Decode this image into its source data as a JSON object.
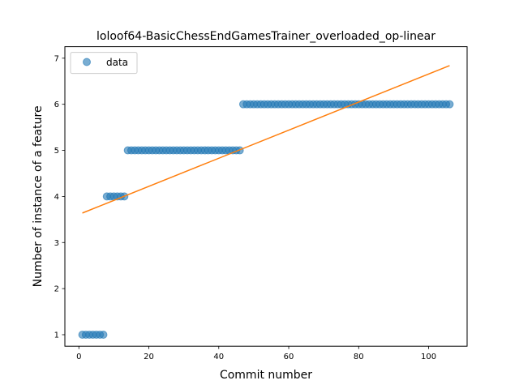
{
  "chart_data": {
    "type": "scatter",
    "title": "loloof64-BasicChessEndGamesTrainer_overloaded_op-linear",
    "xlabel": "Commit number",
    "ylabel": "Number of instance of a feature",
    "xlim": [
      -4,
      111
    ],
    "ylim": [
      0.75,
      7.25
    ],
    "xticks": [
      0,
      20,
      40,
      60,
      80,
      100
    ],
    "yticks": [
      1,
      2,
      3,
      4,
      5,
      6,
      7
    ],
    "legend_position": "upper-left",
    "grid": false,
    "series": [
      {
        "name": "data",
        "kind": "scatter",
        "color": "#1f77b4",
        "segments": [
          {
            "x_start": 1,
            "x_end": 7,
            "y": 1
          },
          {
            "x_start": 8,
            "x_end": 13,
            "y": 4
          },
          {
            "x_start": 14,
            "x_end": 46,
            "y": 5
          },
          {
            "x_start": 47,
            "x_end": 106,
            "y": 6
          }
        ]
      },
      {
        "kind": "line",
        "color": "#ff7f0e",
        "x": [
          1,
          106
        ],
        "y": [
          3.64,
          6.84
        ]
      }
    ]
  }
}
